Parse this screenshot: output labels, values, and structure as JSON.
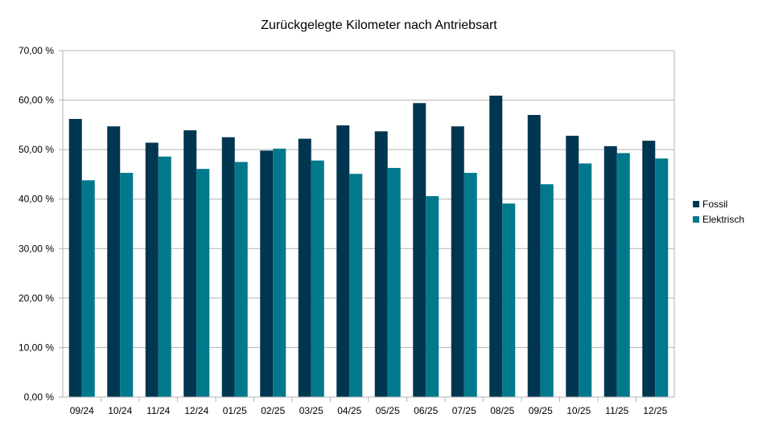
{
  "chart_data": {
    "type": "bar",
    "title": "Zurückgelegte Kilometer nach Antriebsart",
    "xlabel": "",
    "ylabel": "",
    "categories": [
      "09/24",
      "10/24",
      "11/24",
      "12/24",
      "01/25",
      "02/25",
      "03/25",
      "04/25",
      "05/25",
      "06/25",
      "07/25",
      "08/25",
      "09/25",
      "10/25",
      "11/25",
      "12/25"
    ],
    "series": [
      {
        "name": "Fossil",
        "color": "#003650",
        "values": [
          56.2,
          54.7,
          51.4,
          53.9,
          52.5,
          49.8,
          52.2,
          54.9,
          53.7,
          59.4,
          54.7,
          60.9,
          57.0,
          52.8,
          50.7,
          51.8
        ]
      },
      {
        "name": "Elektrisch",
        "color": "#00798c",
        "values": [
          43.8,
          45.3,
          48.6,
          46.1,
          47.5,
          50.2,
          47.8,
          45.1,
          46.3,
          40.6,
          45.3,
          39.1,
          43.0,
          47.2,
          49.3,
          48.2
        ]
      }
    ],
    "ylim": [
      0,
      70
    ],
    "yticks": [
      0,
      10,
      20,
      30,
      40,
      50,
      60,
      70
    ],
    "ytick_labels": [
      "0,00 %",
      "10,00 %",
      "20,00 %",
      "30,00 %",
      "40,00 %",
      "50,00 %",
      "60,00 %",
      "70,00 %"
    ],
    "grid": true,
    "legend_position": "right"
  }
}
